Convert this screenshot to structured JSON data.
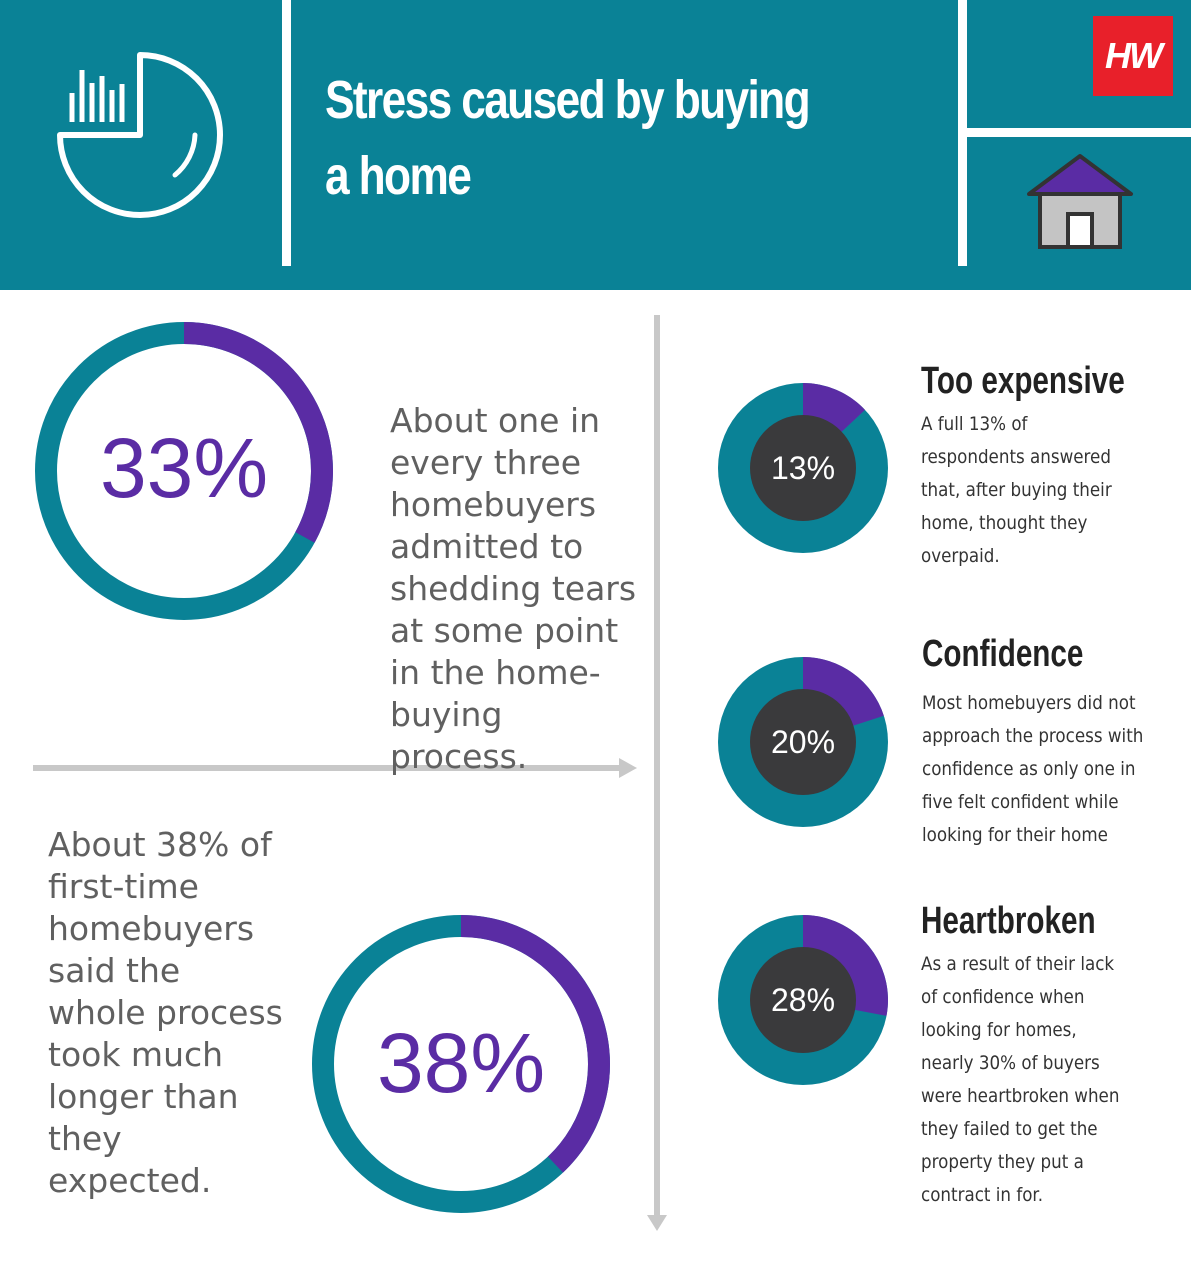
{
  "header": {
    "title": "Stress caused by buying a home",
    "logo_text": "HW",
    "left_icon": "clock-chart-icon",
    "right_icon": "house-icon"
  },
  "colors": {
    "teal": "#0a8296",
    "purple": "#5a2ca4",
    "dark": "#3a3a3c",
    "logo_red": "#e8202a"
  },
  "stats": {
    "tears": {
      "value": 33,
      "label": "33%",
      "text": "About one in every three homebuyers admitted to shedding tears at some point in the home-buying process."
    },
    "longer": {
      "value": 38,
      "label": "38%",
      "text": "About 38% of first-time homebuyers said the whole process took much longer than they expected."
    }
  },
  "items": [
    {
      "value": 13,
      "label": "13%",
      "heading": "Too expensive",
      "text": "A full 13% of respondents answered that, after buying their home, thought they overpaid."
    },
    {
      "value": 20,
      "label": "20%",
      "heading": "Confidence",
      "text": "Most homebuyers did not approach the process with confidence as only one in five felt confident while looking for their home"
    },
    {
      "value": 28,
      "label": "28%",
      "heading": "Heartbroken",
      "text": "As a result of their lack of confidence when looking for homes, nearly 30% of buyers were heartbroken when they failed to get the property they put a contract in for."
    }
  ]
}
